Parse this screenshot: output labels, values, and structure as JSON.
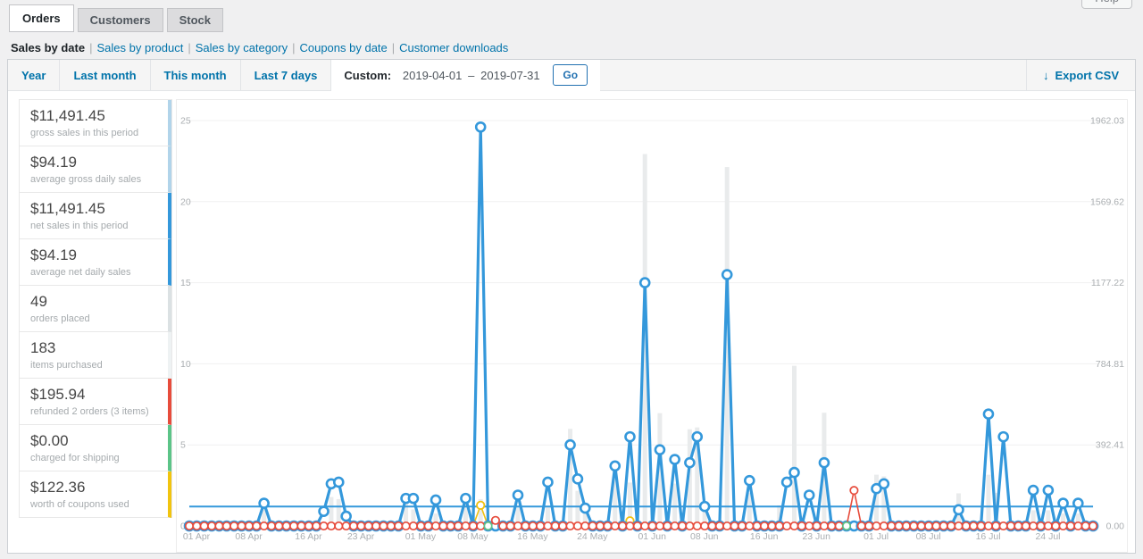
{
  "page": {
    "help_label": "Help"
  },
  "tabs": [
    {
      "label": "Orders",
      "active": true
    },
    {
      "label": "Customers",
      "active": false
    },
    {
      "label": "Stock",
      "active": false
    }
  ],
  "subnav": {
    "current": "Sales by date",
    "links": [
      "Sales by product",
      "Sales by category",
      "Coupons by date",
      "Customer downloads"
    ],
    "separator": "|"
  },
  "filters": {
    "ranges": [
      "Year",
      "Last month",
      "This month",
      "Last 7 days"
    ],
    "custom_label": "Custom:",
    "date_from": "2019-04-01",
    "date_to": "2019-07-31",
    "range_separator": "–",
    "go_label": "Go",
    "export_label": "Export CSV",
    "download_icon": "↓"
  },
  "stats": [
    {
      "value": "$11,491.45",
      "label": "gross sales in this period",
      "accent": "#b1d4ea"
    },
    {
      "value": "$94.19",
      "label": "average gross daily sales",
      "accent": "#b1d4ea"
    },
    {
      "value": "$11,491.45",
      "label": "net sales in this period",
      "accent": "#3498db"
    },
    {
      "value": "$94.19",
      "label": "average net daily sales",
      "accent": "#3498db"
    },
    {
      "value": "49",
      "label": "orders placed",
      "accent": "#dbe1e3"
    },
    {
      "value": "183",
      "label": "items purchased",
      "accent": "#eef2f3"
    },
    {
      "value": "$195.94",
      "label": "refunded 2 orders (3 items)",
      "accent": "#e74c3c"
    },
    {
      "value": "$0.00",
      "label": "charged for shipping",
      "accent": "#5cc488"
    },
    {
      "value": "$122.36",
      "label": "worth of coupons used",
      "accent": "#f1c40f"
    }
  ],
  "chart_data": {
    "type": "line",
    "start_date": "2019-04-01",
    "end_date": "2019-07-31",
    "num_days": 122,
    "grid": true,
    "legend": "none",
    "left_axis": {
      "ticks": [
        0,
        5,
        10,
        15,
        20,
        25
      ],
      "max": 25
    },
    "right_axis": {
      "tick_labels": [
        "0.00",
        "392.41",
        "784.81",
        "1177.22",
        "1569.62",
        "1962.03"
      ],
      "max": 1962.03
    },
    "x_ticks": [
      {
        "day": 0,
        "label": "01 Apr"
      },
      {
        "day": 7,
        "label": "08 Apr"
      },
      {
        "day": 15,
        "label": "16 Apr"
      },
      {
        "day": 22,
        "label": "23 Apr"
      },
      {
        "day": 30,
        "label": "01 May"
      },
      {
        "day": 37,
        "label": "08 May"
      },
      {
        "day": 45,
        "label": "16 May"
      },
      {
        "day": 53,
        "label": "24 May"
      },
      {
        "day": 61,
        "label": "01 Jun"
      },
      {
        "day": 68,
        "label": "08 Jun"
      },
      {
        "day": 76,
        "label": "16 Jun"
      },
      {
        "day": 83,
        "label": "23 Jun"
      },
      {
        "day": 91,
        "label": "01 Jul"
      },
      {
        "day": 98,
        "label": "08 Jul"
      },
      {
        "day": 106,
        "label": "16 Jul"
      },
      {
        "day": 114,
        "label": "24 Jul"
      }
    ],
    "series": {
      "items_sold": {
        "color": "#3498db",
        "points": {
          "10": 1.4,
          "18": 0.9,
          "19": 2.6,
          "20": 2.7,
          "21": 0.6,
          "29": 1.7,
          "30": 1.7,
          "33": 1.6,
          "37": 1.7,
          "39": 24.6,
          "44": 1.9,
          "48": 2.7,
          "51": 5,
          "52": 2.9,
          "53": 1.1,
          "57": 3.7,
          "59": 5.5,
          "61": 15,
          "63": 4.7,
          "65": 4.1,
          "67": 3.9,
          "68": 5.5,
          "69": 1.2,
          "72": 15.5,
          "75": 2.8,
          "80": 2.7,
          "81": 3.3,
          "83": 1.9,
          "85": 3.9,
          "92": 2.3,
          "93": 2.6,
          "103": 1,
          "107": 6.9,
          "109": 5.5,
          "113": 2.2,
          "115": 2.2,
          "117": 1.4,
          "119": 1.4
        }
      },
      "sales_amount_bars": {
        "color": "#e9ebec",
        "points_usd": {
          "10": 120,
          "19": 140,
          "20": 130,
          "29": 120,
          "30": 80,
          "33": 60,
          "37": 110,
          "39": 130,
          "44": 90,
          "48": 90,
          "51": 470,
          "52": 170,
          "53": 60,
          "57": 300,
          "59": 210,
          "61": 1800,
          "63": 546,
          "65": 205,
          "67": 468,
          "68": 477,
          "69": 100,
          "72": 1737,
          "75": 160,
          "79": 100,
          "81": 775,
          "85": 548,
          "92": 248,
          "93": 240,
          "103": 158,
          "107": 248,
          "108": 160,
          "113": 76,
          "115": 76,
          "117": 60,
          "119": 60
        }
      },
      "average_daily_sales_line": {
        "color": "#3498db",
        "value_usd": 94.19
      },
      "refund_amount": {
        "color": "#e74c3c",
        "points_usd": {
          "41": 27,
          "89": 172
        }
      },
      "coupon_amount": {
        "color": "#f0c010",
        "points_usd": {
          "39": 100,
          "59": 25
        }
      },
      "shipping_amount": {
        "color": "#5cc488",
        "visible_zero_days": [
          40,
          88
        ]
      }
    }
  }
}
